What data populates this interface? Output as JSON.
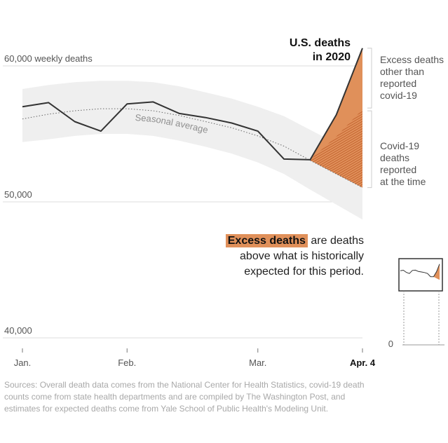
{
  "chart_data": {
    "type": "line",
    "title": "U.S. deaths in 2020",
    "title_lines": [
      "U.S. deaths",
      "in 2020"
    ],
    "ylim": [
      40000,
      62000
    ],
    "y_ticks": [
      {
        "value": 60000,
        "label": "60,000 weekly deaths"
      },
      {
        "value": 50000,
        "label": "50,000"
      },
      {
        "value": 40000,
        "label": "40,000"
      }
    ],
    "x_ticks": [
      {
        "week": 0,
        "label": "Jan."
      },
      {
        "week": 4,
        "label": "Feb."
      },
      {
        "week": 9,
        "label": "Mar."
      },
      {
        "week": 13,
        "label": "Apr. 4"
      }
    ],
    "weeks": [
      0,
      1,
      2,
      3,
      4,
      5,
      6,
      7,
      8,
      9,
      10,
      11,
      12,
      13
    ],
    "actual_deaths": [
      57000,
      57300,
      55900,
      55200,
      57200,
      57350,
      56500,
      56200,
      55800,
      55200,
      53150,
      53100,
      56400,
      61300
    ],
    "seasonal_average": [
      56100,
      56450,
      56700,
      56850,
      56850,
      56700,
      56350,
      55900,
      55450,
      54850,
      54100,
      53050,
      52050,
      51050
    ],
    "band_upper": [
      58300,
      58600,
      58800,
      58900,
      58900,
      58800,
      58500,
      58050,
      57600,
      57000,
      56300,
      55300,
      54300,
      53400
    ],
    "band_lower": [
      54400,
      54600,
      54850,
      55000,
      55000,
      54850,
      54500,
      54050,
      53550,
      52900,
      52050,
      50900,
      49800,
      48700
    ],
    "covid_reported": {
      "weeks": [
        11,
        12,
        13
      ],
      "values": [
        53100,
        54800,
        56800
      ]
    },
    "seasonal_label": "Seasonal average",
    "legend": {
      "excess_other": [
        "Excess deaths",
        "other than",
        "reported",
        "covid-19"
      ],
      "covid_reported": [
        "Covid-19",
        "deaths",
        "reported",
        "at the time"
      ]
    },
    "inset_zero_label": "0",
    "colors": {
      "excess": "#e0905a",
      "covid": "#d06a36",
      "line": "#333333",
      "band": "#efefef",
      "axis": "#999999"
    }
  },
  "note": {
    "highlight": "Excess deaths",
    "text_1": "are deaths",
    "text_2": "above what is historically",
    "text_3": "expected for this period."
  },
  "sources": "Sources: Overall death data comes from the National Center for Health Statistics, covid-19 death counts come from state health departments and are compiled by The Washington Post, and estimates for expected deaths come from Yale School of Public Health's Modeling Unit."
}
